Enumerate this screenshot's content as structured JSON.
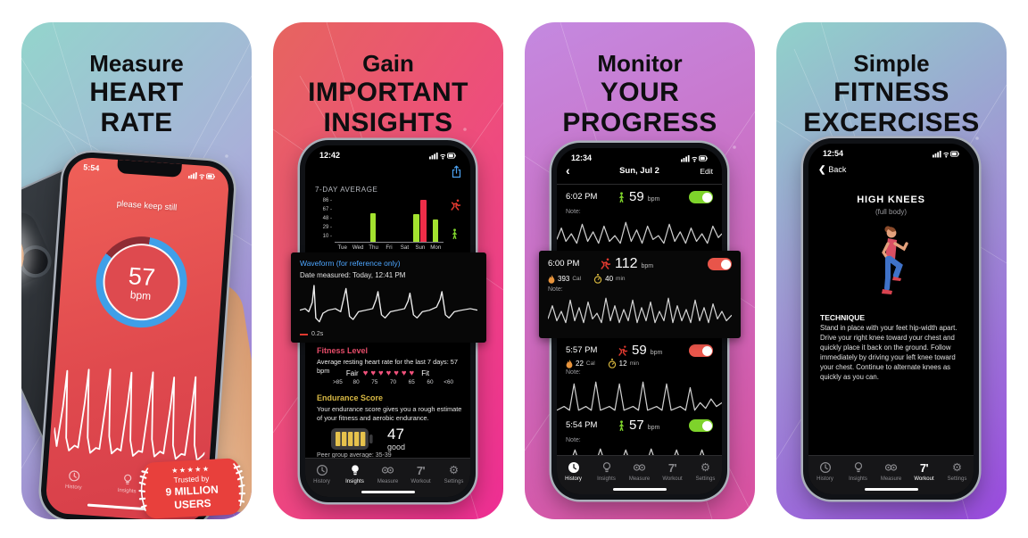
{
  "panel1": {
    "title1": "Measure",
    "title2": "HEART",
    "title3": "RATE",
    "time": "5:54",
    "instruction": "please keep still",
    "bpm_value": "57",
    "bpm_unit": "bpm",
    "active_tab": "Measure",
    "badge": {
      "stars": "★★★★★",
      "line1": "Trusted by",
      "line2": "9 MILLION",
      "line3": "USERS"
    }
  },
  "panel2": {
    "title1": "Gain",
    "title2": "IMPORTANT",
    "title3": "INSIGHTS",
    "time": "12:42",
    "chart_heading": "7-DAY AVERAGE",
    "active_tab": "Insights",
    "waveform_card": {
      "title": "Waveform (for reference only)",
      "date_line": "Date measured: Today, 12:41 PM",
      "scale_label": "0.2s"
    },
    "fitness": {
      "heading": "Fitness Level",
      "desc": "Average resting heart rate for the last 7 days: 57 bpm",
      "left_label": "Fair",
      "right_label": "Fit",
      "hearts": "♥♥♥♥♥♥♥",
      "scale": [
        ">85",
        "80",
        "75",
        "70",
        "65",
        "60",
        "<60"
      ]
    },
    "endurance": {
      "heading": "Endurance Score",
      "desc": "Your endurance score gives you a rough estimate of your fitness and aerobic endurance.",
      "score": "47",
      "rating": "good",
      "clipped_line": "Peer group average: 35-39"
    }
  },
  "panel3": {
    "title1": "Monitor",
    "title2": "YOUR",
    "title3": "PROGRESS",
    "time": "12:34",
    "active_tab": "History",
    "nav": {
      "back": "‹",
      "title": "Sun, Jul 2",
      "edit": "Edit"
    },
    "bpm_unit": "bpm",
    "entries": [
      {
        "time": "6:02 PM",
        "bpm": "59",
        "note": "Note:"
      },
      {
        "time": "6:00 PM",
        "bpm": "112",
        "cal": "393",
        "cal_unit": "Cal",
        "duration": "40",
        "duration_unit": "min",
        "note": "Note:"
      },
      {
        "time": "5:57 PM",
        "bpm": "59",
        "cal": "22",
        "cal_unit": "Cal",
        "duration": "12",
        "duration_unit": "min",
        "note": "Note:"
      },
      {
        "time": "5:54 PM",
        "bpm": "57",
        "note": "Note:"
      }
    ]
  },
  "panel4": {
    "title1": "Simple",
    "title2": "FITNESS",
    "title3": "EXCERCISES",
    "time": "12:54",
    "back_chevron": "❮",
    "back_label": "Back",
    "active_tab": "Workout",
    "exercise": {
      "name": "HIGH KNEES",
      "subtitle": "(full body)",
      "technique_heading": "TECHNIQUE",
      "technique_text": "Stand in place with your feet hip-width apart. Drive your right knee toward your chest and quickly place it back on the ground. Follow immediately by driving your left knee toward your chest. Continue to alternate knees as quickly as you can."
    }
  },
  "tabs": [
    {
      "label": "History"
    },
    {
      "label": "Insights"
    },
    {
      "label": "Measure"
    },
    {
      "label": "Workout",
      "glyph": "7'"
    },
    {
      "label": "Settings"
    }
  ],
  "chart_data": {
    "type": "bar",
    "title": "7-DAY AVERAGE",
    "categories": [
      "Tue",
      "Wed",
      "Thu",
      "Fri",
      "Sat",
      "Sun",
      "Mon"
    ],
    "series": [
      {
        "name": "resting bpm",
        "color": "#a3e22f",
        "values": [
          null,
          null,
          60,
          null,
          null,
          58,
          48
        ]
      },
      {
        "name": "exercise bpm",
        "color": "#ef2d48",
        "values": [
          null,
          null,
          null,
          null,
          null,
          90,
          null
        ]
      }
    ],
    "yticks": [
      86,
      67,
      48,
      29,
      10
    ],
    "ylim": [
      0,
      95
    ],
    "xlabel": "",
    "ylabel": "",
    "legend_icons": [
      "runner",
      "person"
    ]
  },
  "colors": {
    "toggle_on_green": "#7ed32b",
    "toggle_on_red": "#e8554a",
    "link_blue": "#4da6ff",
    "fitness_pink": "#f0506e",
    "endurance_gold": "#d9b944",
    "badge_red": "#e8403c",
    "gauge_blue": "#3f9fe8"
  }
}
